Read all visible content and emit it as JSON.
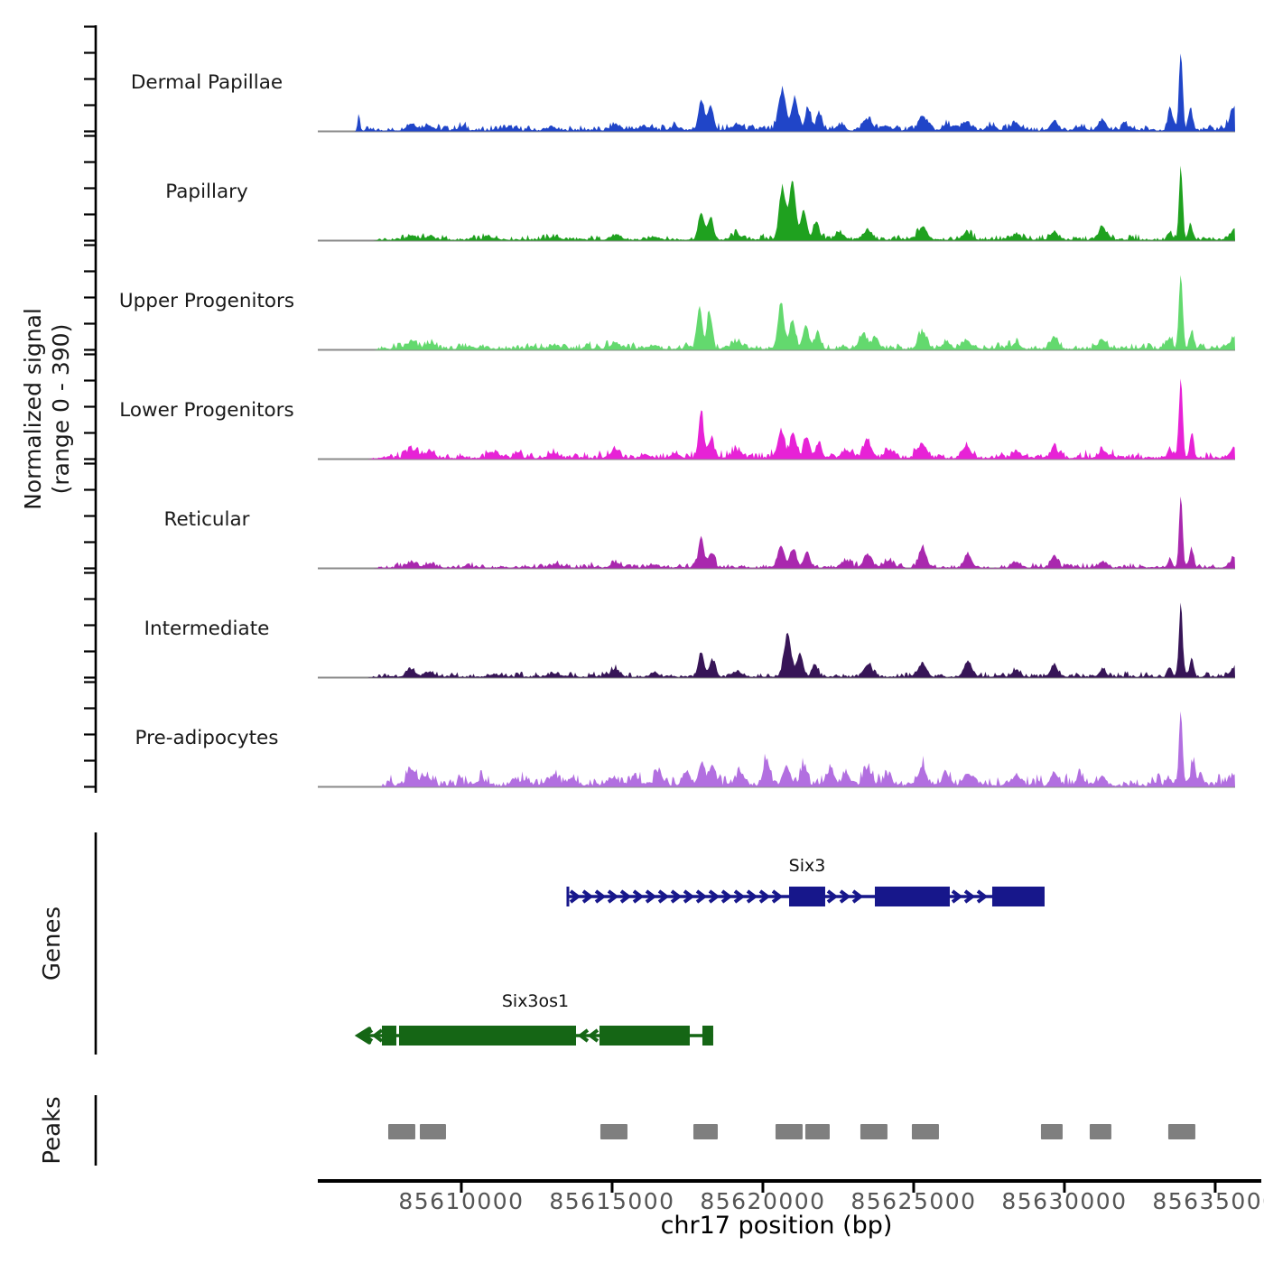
{
  "figure": {
    "ylabel_line1": "Normalized signal",
    "ylabel_line2": "(range 0 - 390)",
    "genes_section_label": "Genes",
    "peaks_section_label": "Peaks",
    "xlabel": "chr17 position (bp)"
  },
  "chart_data": {
    "type": "area",
    "title": "",
    "x_axis": {
      "label": "chr17 position (bp)",
      "domain_bp": [
        85605240,
        85635660
      ],
      "ticks": [
        85610000,
        85615000,
        85620000,
        85625000,
        85630000,
        85635000
      ],
      "tick_labels": [
        "85610000",
        "85615000",
        "85620000",
        "85625000",
        "85630000",
        "85635000"
      ]
    },
    "y_axis": {
      "label": "Normalized signal (range 0 - 390)",
      "range": [
        0,
        390
      ],
      "ticks_per_track": [
        0,
        100,
        200,
        300,
        390
      ]
    },
    "signal_tracks": [
      {
        "label": "Dermal Papillae",
        "color": "#2045C8",
        "noise_amp": 26,
        "signal_start_bp": 85606480,
        "peaks": [
          [
            85606600,
            65,
            55
          ],
          [
            85608350,
            22,
            230
          ],
          [
            85608900,
            20,
            190
          ],
          [
            85610000,
            8,
            280
          ],
          [
            85611500,
            10,
            280
          ],
          [
            85613000,
            12,
            240
          ],
          [
            85615100,
            22,
            210
          ],
          [
            85616100,
            12,
            240
          ],
          [
            85617100,
            15,
            200
          ],
          [
            85617950,
            115,
            125
          ],
          [
            85618260,
            95,
            140
          ],
          [
            85619150,
            22,
            240
          ],
          [
            85620650,
            150,
            165
          ],
          [
            85621060,
            120,
            145
          ],
          [
            85621500,
            80,
            135
          ],
          [
            85621870,
            60,
            130
          ],
          [
            85622550,
            20,
            200
          ],
          [
            85623470,
            40,
            210
          ],
          [
            85624100,
            18,
            190
          ],
          [
            85625300,
            50,
            210
          ],
          [
            85626100,
            20,
            200
          ],
          [
            85626750,
            30,
            200
          ],
          [
            85627550,
            15,
            200
          ],
          [
            85628400,
            28,
            180
          ],
          [
            85629660,
            38,
            175
          ],
          [
            85630550,
            15,
            190
          ],
          [
            85631260,
            40,
            175
          ],
          [
            85632100,
            12,
            200
          ],
          [
            85633500,
            85,
            105
          ],
          [
            85633860,
            300,
            85
          ],
          [
            85634180,
            85,
            95
          ],
          [
            85635700,
            95,
            250
          ]
        ]
      },
      {
        "label": "Papillary",
        "color": "#1FA11F",
        "noise_amp": 22,
        "signal_start_bp": 85607100,
        "peaks": [
          [
            85608350,
            16,
            230
          ],
          [
            85608950,
            13,
            200
          ],
          [
            85611000,
            8,
            280
          ],
          [
            85613100,
            10,
            250
          ],
          [
            85615100,
            18,
            210
          ],
          [
            85616400,
            12,
            220
          ],
          [
            85617950,
            105,
            130
          ],
          [
            85618260,
            80,
            140
          ],
          [
            85619150,
            18,
            240
          ],
          [
            85620650,
            195,
            155
          ],
          [
            85620980,
            225,
            145
          ],
          [
            85621350,
            115,
            135
          ],
          [
            85621750,
            60,
            135
          ],
          [
            85622550,
            25,
            200
          ],
          [
            85623470,
            35,
            210
          ],
          [
            85625300,
            45,
            210
          ],
          [
            85626750,
            25,
            200
          ],
          [
            85628400,
            20,
            180
          ],
          [
            85629660,
            30,
            175
          ],
          [
            85631260,
            48,
            170
          ],
          [
            85633500,
            30,
            105
          ],
          [
            85633860,
            275,
            85
          ],
          [
            85634180,
            60,
            95
          ],
          [
            85635700,
            45,
            250
          ]
        ]
      },
      {
        "label": "Upper Progenitors",
        "color": "#63D96E",
        "noise_amp": 26,
        "signal_start_bp": 85607100,
        "peaks": [
          [
            85608350,
            24,
            220
          ],
          [
            85608950,
            20,
            200
          ],
          [
            85610300,
            10,
            250
          ],
          [
            85613100,
            12,
            250
          ],
          [
            85615100,
            25,
            200
          ],
          [
            85616400,
            15,
            210
          ],
          [
            85617900,
            165,
            115
          ],
          [
            85618220,
            140,
            115
          ],
          [
            85619150,
            25,
            240
          ],
          [
            85620600,
            170,
            145
          ],
          [
            85620980,
            110,
            140
          ],
          [
            85621420,
            85,
            135
          ],
          [
            85621820,
            60,
            130
          ],
          [
            85623320,
            55,
            175
          ],
          [
            85623730,
            45,
            155
          ],
          [
            85625300,
            62,
            190
          ],
          [
            85626100,
            25,
            190
          ],
          [
            85626750,
            30,
            190
          ],
          [
            85628400,
            22,
            180
          ],
          [
            85629660,
            40,
            170
          ],
          [
            85631260,
            35,
            170
          ],
          [
            85633500,
            40,
            105
          ],
          [
            85633860,
            280,
            85
          ],
          [
            85634220,
            70,
            95
          ],
          [
            85635700,
            50,
            250
          ]
        ]
      },
      {
        "label": "Lower Progenitors",
        "color": "#E722D6",
        "noise_amp": 30,
        "signal_start_bp": 85606900,
        "peaks": [
          [
            85608350,
            30,
            220
          ],
          [
            85608950,
            25,
            200
          ],
          [
            85611100,
            10,
            270
          ],
          [
            85613100,
            15,
            250
          ],
          [
            85615100,
            35,
            200
          ],
          [
            85616100,
            15,
            220
          ],
          [
            85617100,
            20,
            200
          ],
          [
            85617950,
            180,
            115
          ],
          [
            85618280,
            70,
            135
          ],
          [
            85619150,
            25,
            240
          ],
          [
            85620600,
            105,
            155
          ],
          [
            85621010,
            90,
            145
          ],
          [
            85621460,
            80,
            140
          ],
          [
            85621860,
            60,
            130
          ],
          [
            85622750,
            30,
            195
          ],
          [
            85623470,
            60,
            195
          ],
          [
            85624150,
            30,
            175
          ],
          [
            85625300,
            50,
            195
          ],
          [
            85626750,
            45,
            195
          ],
          [
            85628400,
            25,
            180
          ],
          [
            85629660,
            40,
            170
          ],
          [
            85631260,
            30,
            170
          ],
          [
            85633500,
            35,
            105
          ],
          [
            85633860,
            305,
            85
          ],
          [
            85634220,
            90,
            95
          ],
          [
            85635700,
            45,
            250
          ]
        ]
      },
      {
        "label": "Reticular",
        "color": "#A928AE",
        "noise_amp": 22,
        "signal_start_bp": 85607100,
        "peaks": [
          [
            85608350,
            20,
            220
          ],
          [
            85608950,
            15,
            200
          ],
          [
            85613100,
            10,
            250
          ],
          [
            85615100,
            20,
            200
          ],
          [
            85616400,
            12,
            200
          ],
          [
            85617950,
            120,
            125
          ],
          [
            85618280,
            55,
            135
          ],
          [
            85620600,
            85,
            155
          ],
          [
            85621010,
            70,
            145
          ],
          [
            85621460,
            60,
            140
          ],
          [
            85622750,
            25,
            195
          ],
          [
            85623470,
            50,
            185
          ],
          [
            85624150,
            25,
            175
          ],
          [
            85625300,
            75,
            175
          ],
          [
            85626800,
            50,
            175
          ],
          [
            85628400,
            20,
            180
          ],
          [
            85629660,
            45,
            165
          ],
          [
            85631260,
            25,
            165
          ],
          [
            85633500,
            30,
            100
          ],
          [
            85633860,
            270,
            80
          ],
          [
            85634220,
            65,
            95
          ],
          [
            85635700,
            40,
            250
          ]
        ]
      },
      {
        "label": "Intermediate",
        "color": "#371557",
        "noise_amp": 20,
        "signal_start_bp": 85606900,
        "peaks": [
          [
            85608350,
            25,
            225
          ],
          [
            85608950,
            20,
            200
          ],
          [
            85611100,
            8,
            270
          ],
          [
            85613100,
            12,
            250
          ],
          [
            85615100,
            28,
            200
          ],
          [
            85616400,
            15,
            200
          ],
          [
            85617950,
            95,
            135
          ],
          [
            85618320,
            60,
            145
          ],
          [
            85619150,
            20,
            240
          ],
          [
            85620820,
            160,
            165
          ],
          [
            85621230,
            90,
            145
          ],
          [
            85621720,
            50,
            135
          ],
          [
            85623470,
            45,
            195
          ],
          [
            85625300,
            50,
            195
          ],
          [
            85626800,
            60,
            185
          ],
          [
            85628400,
            25,
            180
          ],
          [
            85629660,
            45,
            165
          ],
          [
            85631260,
            25,
            165
          ],
          [
            85633500,
            35,
            100
          ],
          [
            85633860,
            290,
            80
          ],
          [
            85634220,
            70,
            95
          ],
          [
            85635700,
            40,
            250
          ]
        ]
      },
      {
        "label": "Pre-adipocytes",
        "color": "#B26FE0",
        "noise_amp": 45,
        "signal_start_bp": 85607300,
        "peaks": [
          [
            85608350,
            55,
            195
          ],
          [
            85608850,
            35,
            195
          ],
          [
            85610600,
            15,
            280
          ],
          [
            85612100,
            20,
            240
          ],
          [
            85613050,
            35,
            215
          ],
          [
            85613650,
            25,
            200
          ],
          [
            85615050,
            30,
            200
          ],
          [
            85615750,
            25,
            200
          ],
          [
            85616550,
            40,
            195
          ],
          [
            85617450,
            50,
            175
          ],
          [
            85617980,
            85,
            145
          ],
          [
            85618330,
            70,
            145
          ],
          [
            85619250,
            40,
            210
          ],
          [
            85620120,
            95,
            155
          ],
          [
            85620780,
            75,
            155
          ],
          [
            85621330,
            55,
            145
          ],
          [
            85622250,
            60,
            175
          ],
          [
            85622760,
            50,
            165
          ],
          [
            85623470,
            50,
            185
          ],
          [
            85624150,
            35,
            175
          ],
          [
            85625300,
            70,
            175
          ],
          [
            85626100,
            35,
            175
          ],
          [
            85626800,
            45,
            175
          ],
          [
            85628400,
            40,
            175
          ],
          [
            85629660,
            50,
            165
          ],
          [
            85630550,
            25,
            175
          ],
          [
            85631260,
            35,
            165
          ],
          [
            85633420,
            30,
            105
          ],
          [
            85633860,
            270,
            85
          ],
          [
            85634260,
            75,
            105
          ],
          [
            85634520,
            40,
            115
          ],
          [
            85635700,
            45,
            250
          ]
        ]
      }
    ],
    "genes": [
      {
        "name": "Six3",
        "color": "#17178B",
        "strand": "+",
        "start": 85613533,
        "end": 85629342,
        "exons": [
          [
            85620869,
            85622066
          ],
          [
            85623713,
            85626198
          ],
          [
            85627605,
            85629342
          ]
        ]
      },
      {
        "name": "Six3os1",
        "color": "#156615",
        "strand": "-",
        "start": 85606587,
        "end": 85618353,
        "exons": [
          [
            85607366,
            85607845
          ],
          [
            85607935,
            85613803
          ],
          [
            85614581,
            85617575
          ],
          [
            85617994,
            85618353
          ]
        ]
      }
    ],
    "peak_intervals": [
      [
        85607575,
        85608473
      ],
      [
        85608623,
        85609491
      ],
      [
        85614611,
        85615509
      ],
      [
        85617695,
        85618503
      ],
      [
        85620419,
        85621317
      ],
      [
        85621407,
        85622216
      ],
      [
        85623233,
        85624131
      ],
      [
        85624940,
        85625838
      ],
      [
        85629221,
        85629940
      ],
      [
        85630838,
        85631556
      ],
      [
        85633443,
        85634341
      ]
    ],
    "peaks_color": "#7F7F7F",
    "baseline_color": "#8A8A8A",
    "axis_color": "#000000"
  }
}
